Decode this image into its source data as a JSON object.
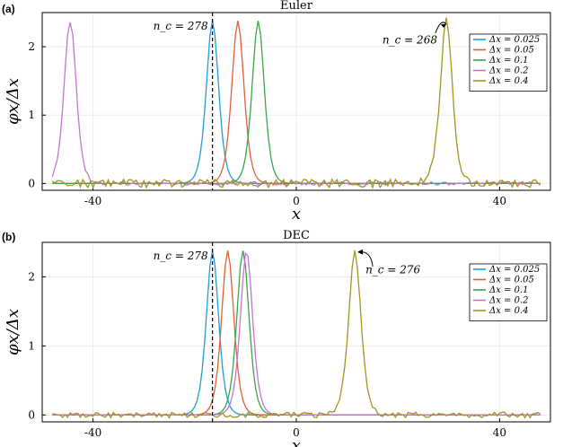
{
  "panels_label": [
    "(a)",
    "(b)"
  ],
  "chart_data": [
    {
      "type": "line",
      "panel": "(a)",
      "title": "Euler",
      "xlabel": "x",
      "ylabel": "φx/Δx",
      "xlim": [
        -50,
        50
      ],
      "ylim": [
        -0.1,
        2.5
      ],
      "xticks": [
        -40,
        0,
        40
      ],
      "yticks": [
        0,
        1,
        2
      ],
      "legend_placement": "top-right",
      "grid": true,
      "vline_x": -16.5,
      "annotations": [
        {
          "text": "n_c = 278",
          "x": -16.5,
          "y": 2.3
        },
        {
          "text": "n_c = 268",
          "x": 29.5,
          "y": 2.2
        }
      ],
      "series": [
        {
          "name": "Δx = 0.025",
          "color": "#1f9ed8",
          "peak_x": -16.5,
          "peak": 2.38,
          "width": 1.6,
          "noise": 0
        },
        {
          "name": "Δx = 0.05",
          "color": "#e0603a",
          "peak_x": -11.5,
          "peak": 2.38,
          "width": 1.6,
          "noise": 0
        },
        {
          "name": "Δx = 0.1",
          "color": "#3aa64a",
          "peak_x": -7.5,
          "peak": 2.38,
          "width": 1.6,
          "noise": 0
        },
        {
          "name": "Δx = 0.2",
          "color": "#c674d0",
          "peak_x": -44.5,
          "peak": 2.38,
          "width": 1.6,
          "noise": 0.025
        },
        {
          "name": "Δx = 0.4",
          "color": "#a39321",
          "peak_x": 29.5,
          "peak": 2.38,
          "width": 1.6,
          "noise": 0.06
        }
      ]
    },
    {
      "type": "line",
      "panel": "(b)",
      "title": "DEC",
      "xlabel": "x",
      "ylabel": "φx/Δx",
      "xlim": [
        -50,
        50
      ],
      "ylim": [
        -0.1,
        2.5
      ],
      "xticks": [
        -40,
        0,
        40
      ],
      "yticks": [
        0,
        1,
        2
      ],
      "legend_placement": "top-right",
      "grid": true,
      "vline_x": -16.5,
      "annotations": [
        {
          "text": "n_c = 278",
          "x": -16.5,
          "y": 2.3
        },
        {
          "text": "n_c = 276",
          "x": 11.5,
          "y": 2.2
        }
      ],
      "series": [
        {
          "name": "Δx = 0.025",
          "color": "#1f9ed8",
          "peak_x": -16.5,
          "peak": 2.38,
          "width": 1.6,
          "noise": 0
        },
        {
          "name": "Δx = 0.05",
          "color": "#e0603a",
          "peak_x": -13.5,
          "peak": 2.38,
          "width": 1.6,
          "noise": 0
        },
        {
          "name": "Δx = 0.1",
          "color": "#3aa64a",
          "peak_x": -10.5,
          "peak": 2.38,
          "width": 1.6,
          "noise": 0
        },
        {
          "name": "Δx = 0.2",
          "color": "#c674d0",
          "peak_x": -9.8,
          "peak": 2.38,
          "width": 1.6,
          "noise": 0
        },
        {
          "name": "Δx = 0.4",
          "color": "#a39321",
          "peak_x": 11.5,
          "peak": 2.38,
          "width": 1.6,
          "noise": 0.04
        }
      ]
    }
  ]
}
